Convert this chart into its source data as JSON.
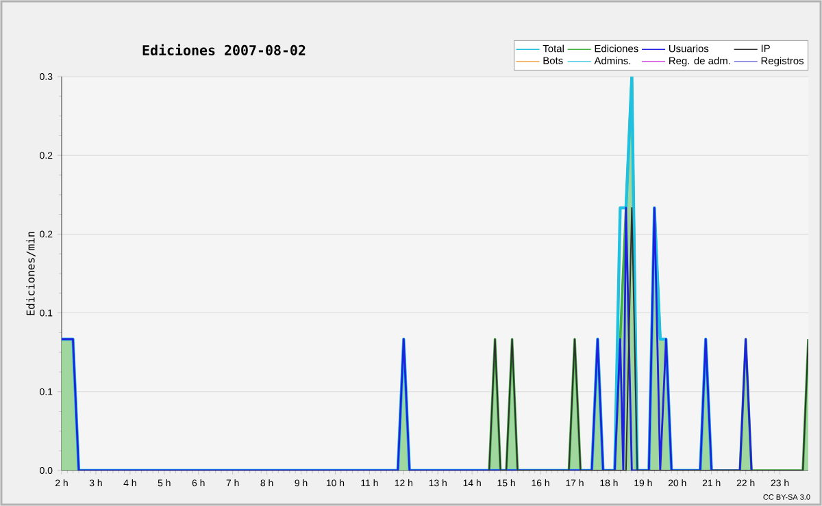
{
  "chart_data": {
    "type": "line",
    "title": "Ediciones  2007-08-02",
    "ylabel": "Ediciones/min",
    "annotations": [
      "CC BY-SA 3.0"
    ],
    "xlim": [
      2,
      23.83
    ],
    "ylim": [
      0,
      0.3
    ],
    "xticks": [
      {
        "value": 2,
        "label": "2 h"
      },
      {
        "value": 3,
        "label": "3 h"
      },
      {
        "value": 4,
        "label": "4 h"
      },
      {
        "value": 5,
        "label": "5 h"
      },
      {
        "value": 6,
        "label": "6 h"
      },
      {
        "value": 7,
        "label": "7 h"
      },
      {
        "value": 8,
        "label": "8 h"
      },
      {
        "value": 9,
        "label": "9 h"
      },
      {
        "value": 10,
        "label": "10 h"
      },
      {
        "value": 11,
        "label": "11 h"
      },
      {
        "value": 12,
        "label": "12 h"
      },
      {
        "value": 13,
        "label": "13 h"
      },
      {
        "value": 14,
        "label": "14 h"
      },
      {
        "value": 15,
        "label": "15 h"
      },
      {
        "value": 16,
        "label": "16 h"
      },
      {
        "value": 17,
        "label": "17 h"
      },
      {
        "value": 18,
        "label": "18 h"
      },
      {
        "value": 19,
        "label": "19 h"
      },
      {
        "value": 20,
        "label": "20 h"
      },
      {
        "value": 21,
        "label": "21 h"
      },
      {
        "value": 22,
        "label": "22 h"
      },
      {
        "value": 23,
        "label": "23 h"
      }
    ],
    "yticks": [
      {
        "value": 0,
        "label": "0.0"
      },
      {
        "value": 0.06,
        "label": "0.1"
      },
      {
        "value": 0.12,
        "label": "0.1"
      },
      {
        "value": 0.18,
        "label": "0.2"
      },
      {
        "value": 0.24,
        "label": "0.2"
      },
      {
        "value": 0.3,
        "label": "0.3"
      }
    ],
    "grid": "y",
    "legend": "top right",
    "series": [
      {
        "name": "Total",
        "color": "#20c0e0",
        "x": [
          2,
          2.33,
          2.5,
          11.83,
          12,
          12.17,
          17.5,
          17.67,
          17.83,
          18.17,
          18.33,
          18.5,
          18.67,
          18.83,
          19.17,
          19.33,
          19.5,
          19.67,
          19.83,
          20.67,
          20.83,
          21
        ],
        "values": [
          0.1,
          0.1,
          0,
          0,
          0.1,
          0,
          0,
          0.1,
          0,
          0,
          0.2,
          0.2,
          0.3,
          0,
          0,
          0.2,
          0.1,
          0.1,
          0,
          0,
          0.1,
          0
        ]
      },
      {
        "name": "Ediciones",
        "type": "area",
        "color": "#40b040",
        "x": [
          2,
          2.33,
          2.5,
          11.83,
          12,
          12.17,
          14.5,
          14.67,
          14.83,
          15,
          15.17,
          15.33,
          16.83,
          17,
          17.17,
          17.5,
          17.67,
          17.83,
          18.17,
          18.33,
          18.5,
          18.67,
          18.83,
          19.17,
          19.33,
          19.5,
          19.67,
          19.83,
          20.67,
          20.83,
          21,
          21.83,
          22,
          22.17,
          23.67,
          23.83
        ],
        "values": [
          0.1,
          0.1,
          0,
          0,
          0.1,
          0,
          0,
          0.1,
          0,
          0,
          0.1,
          0,
          0,
          0.1,
          0,
          0,
          0.1,
          0,
          0,
          0.1,
          0.2,
          0.3,
          0,
          0,
          0.2,
          0.1,
          0.1,
          0,
          0,
          0.1,
          0,
          0,
          0.1,
          0,
          0,
          0.1
        ]
      },
      {
        "name": "Usuarios",
        "color": "#2020e0",
        "x": [
          2,
          2.33,
          2.5,
          11.83,
          12,
          12.17,
          17.5,
          17.67,
          17.83,
          18.17,
          18.33,
          18.42,
          18.5,
          18.67,
          19.17,
          19.33,
          19.5,
          19.67,
          19.83,
          20.67,
          20.83,
          21,
          21.83,
          22,
          22.17
        ],
        "values": [
          0.1,
          0.1,
          0,
          0,
          0.1,
          0,
          0,
          0.1,
          0,
          0,
          0.1,
          0,
          0.2,
          0,
          0,
          0.2,
          0,
          0.1,
          0,
          0,
          0.1,
          0,
          0,
          0.1,
          0
        ]
      },
      {
        "name": "IP",
        "color": "#303030",
        "x": [
          14.5,
          14.67,
          14.83,
          15,
          15.17,
          15.33,
          16.83,
          17,
          17.17,
          18.5,
          18.67,
          18.83,
          23.67,
          23.83
        ],
        "values": [
          0,
          0.1,
          0,
          0,
          0.1,
          0,
          0,
          0.1,
          0,
          0,
          0.2,
          0,
          0,
          0.1
        ]
      },
      {
        "name": "Bots",
        "color": "#f0a040",
        "values": [
          null
        ]
      },
      {
        "name": "Admins.",
        "color": "#40c8e0",
        "values": [
          null
        ]
      },
      {
        "name": "Reg. de adm.",
        "color": "#d040e0",
        "values": [
          null
        ]
      },
      {
        "name": "Registros",
        "color": "#7070e0",
        "values": [
          null
        ]
      }
    ]
  }
}
